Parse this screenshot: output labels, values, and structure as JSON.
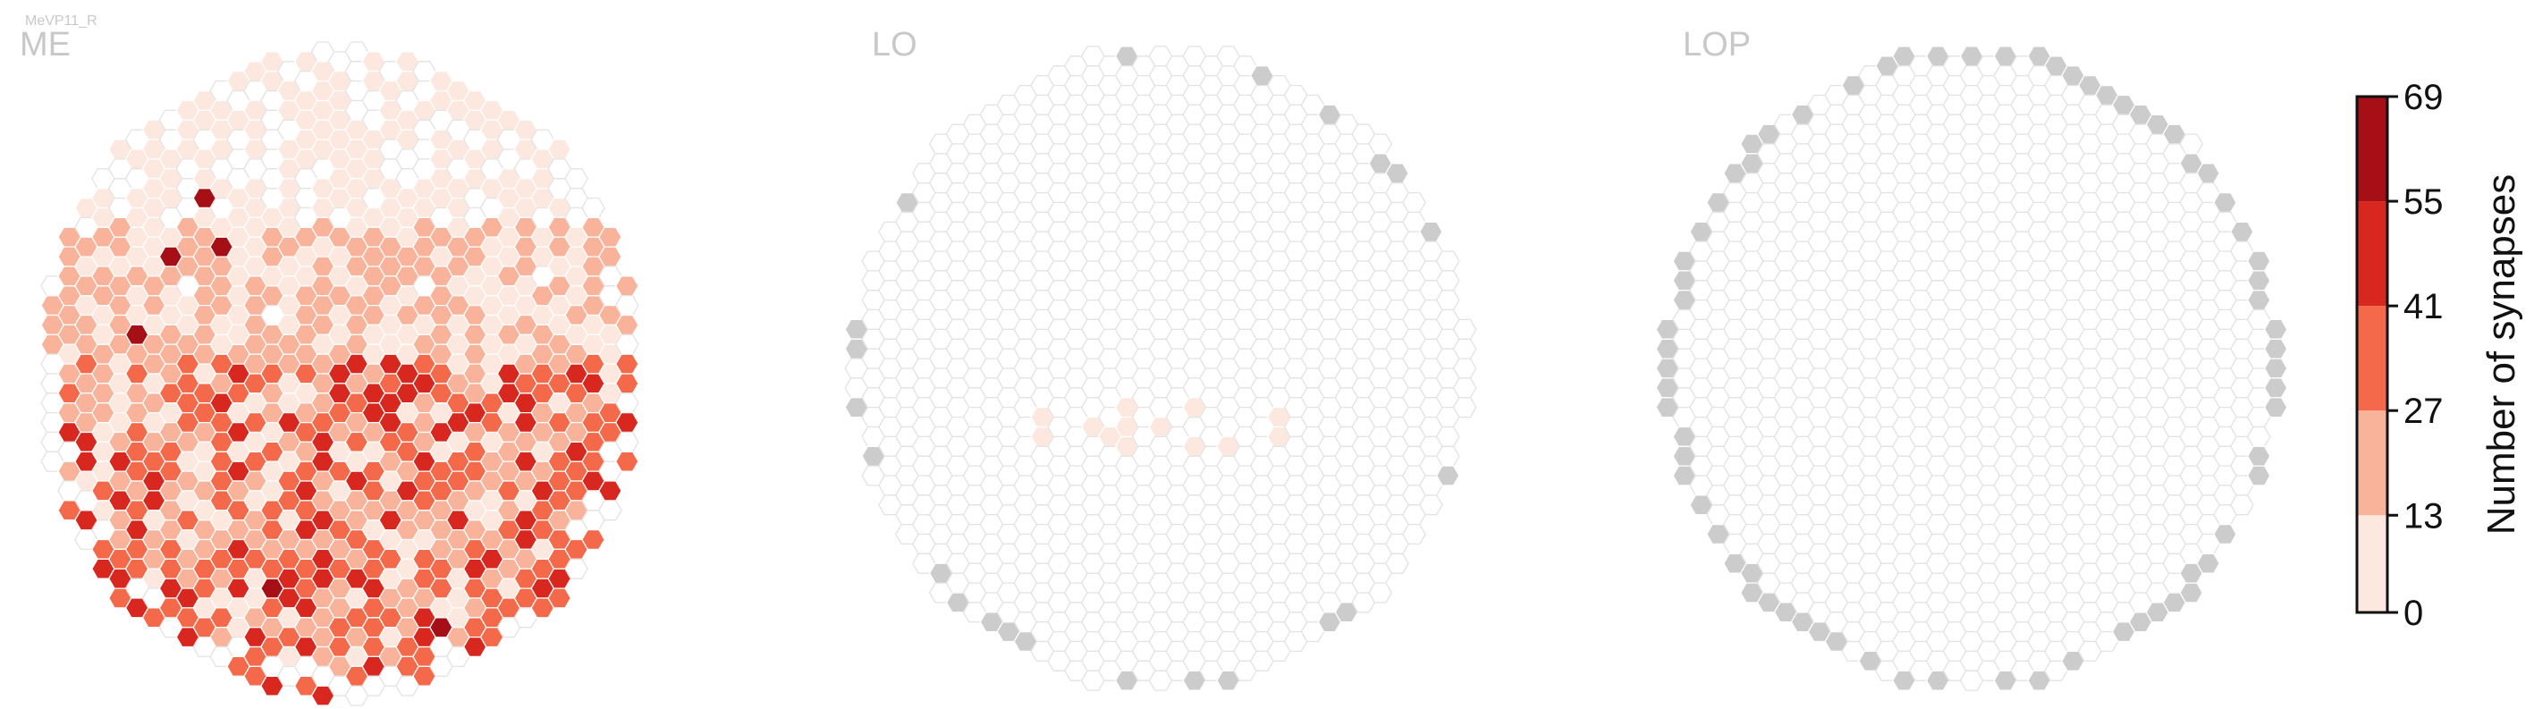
{
  "figure": {
    "supertitle": "MeVP11_R"
  },
  "chart_data": {
    "type": "heatmap",
    "panels": [
      {
        "name": "ME"
      },
      {
        "name": "LO"
      },
      {
        "name": "LOP"
      }
    ],
    "colorbar": {
      "label": "Number of synapses",
      "ticks": [
        0,
        13,
        27,
        41,
        55,
        69
      ],
      "range": [
        0,
        69
      ],
      "bins": [
        {
          "from": 0,
          "to": 13,
          "color": "#fde8df"
        },
        {
          "from": 13,
          "to": 27,
          "color": "#f9b39b"
        },
        {
          "from": 27,
          "to": 41,
          "color": "#f4694a"
        },
        {
          "from": 41,
          "to": 55,
          "color": "#d8271f"
        },
        {
          "from": 55,
          "to": 69,
          "color": "#a50f15"
        }
      ]
    },
    "empty_column_color": "#ffffff",
    "outside_column_color": "#cccccc"
  }
}
